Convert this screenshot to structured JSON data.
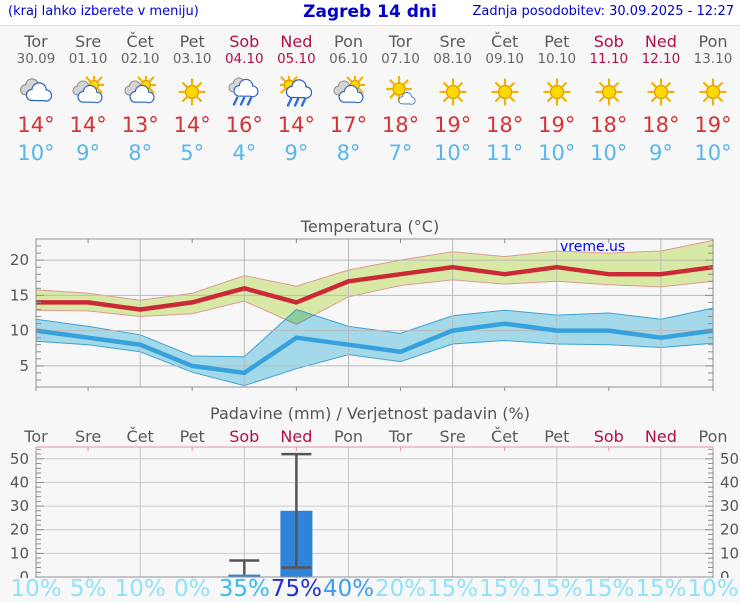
{
  "header": {
    "left_note": "(kraj lahko izberete v meniju)",
    "title": "Zagreb 14 dni",
    "updated": "Zadnja posodobitev: 30.09.2025 - 12:27"
  },
  "days": [
    {
      "name": "Tor",
      "date": "30.09",
      "weekend": false,
      "icon": "cloudy",
      "tmax": "14°",
      "tmin": "10°"
    },
    {
      "name": "Sre",
      "date": "01.10",
      "weekend": false,
      "icon": "partly",
      "tmax": "14°",
      "tmin": "9°"
    },
    {
      "name": "Čet",
      "date": "02.10",
      "weekend": false,
      "icon": "partly",
      "tmax": "13°",
      "tmin": "8°"
    },
    {
      "name": "Pet",
      "date": "03.10",
      "weekend": false,
      "icon": "sunny",
      "tmax": "14°",
      "tmin": "5°"
    },
    {
      "name": "Sob",
      "date": "04.10",
      "weekend": true,
      "icon": "rain",
      "tmax": "16°",
      "tmin": "4°"
    },
    {
      "name": "Ned",
      "date": "05.10",
      "weekend": true,
      "icon": "sun-shower",
      "tmax": "14°",
      "tmin": "9°"
    },
    {
      "name": "Pon",
      "date": "06.10",
      "weekend": false,
      "icon": "partly",
      "tmax": "17°",
      "tmin": "8°"
    },
    {
      "name": "Tor",
      "date": "07.10",
      "weekend": false,
      "icon": "mostly-sunny",
      "tmax": "18°",
      "tmin": "7°"
    },
    {
      "name": "Sre",
      "date": "08.10",
      "weekend": false,
      "icon": "sunny",
      "tmax": "19°",
      "tmin": "10°"
    },
    {
      "name": "Čet",
      "date": "09.10",
      "weekend": false,
      "icon": "sunny",
      "tmax": "18°",
      "tmin": "11°"
    },
    {
      "name": "Pet",
      "date": "10.10",
      "weekend": false,
      "icon": "sunny",
      "tmax": "19°",
      "tmin": "10°"
    },
    {
      "name": "Sob",
      "date": "11.10",
      "weekend": true,
      "icon": "sunny",
      "tmax": "18°",
      "tmin": "10°"
    },
    {
      "name": "Ned",
      "date": "12.10",
      "weekend": true,
      "icon": "sunny",
      "tmax": "18°",
      "tmin": "9°"
    },
    {
      "name": "Pon",
      "date": "13.10",
      "weekend": false,
      "icon": "sunny",
      "tmax": "19°",
      "tmin": "10°"
    }
  ],
  "chart_data": [
    {
      "type": "line",
      "title": "Temperatura (°C)",
      "watermark": "vreme.us",
      "ylim": [
        2,
        23
      ],
      "yticks": [
        5,
        10,
        15,
        20
      ],
      "x_categories": [
        "Tor",
        "Sre",
        "Čet",
        "Pet",
        "Sob",
        "Ned",
        "Pon",
        "Tor",
        "Sre",
        "Čet",
        "Pet",
        "Sob",
        "Ned",
        "Pon"
      ],
      "grid_day_indices": [
        2,
        4,
        6,
        8,
        10,
        12
      ],
      "series": [
        {
          "name": "max-temp",
          "color": "#cc2936",
          "band_fill": "#d8e9a5",
          "band_edge": "#e09a92",
          "blend": false,
          "values": [
            14,
            14,
            13,
            14,
            16,
            14,
            17,
            18,
            19,
            18,
            19,
            18,
            18,
            19
          ],
          "band_upper": [
            15.8,
            15.3,
            14.3,
            15.3,
            17.8,
            16.3,
            18.6,
            20,
            21.2,
            20.5,
            21.3,
            21,
            21.3,
            22.8
          ],
          "band_lower": [
            12.9,
            12.8,
            12,
            12.4,
            14.2,
            10.9,
            14.8,
            16.4,
            17.2,
            16.6,
            17,
            16.5,
            16.2,
            17
          ]
        },
        {
          "name": "min-temp",
          "color": "#36a1dc",
          "band_fill": "#a9e0f2",
          "band_edge": "#3da2d6",
          "blend": true,
          "values": [
            10,
            9,
            8,
            5,
            4,
            9,
            8,
            7,
            10,
            11,
            10,
            10,
            9,
            10
          ],
          "band_upper": [
            11.6,
            10.6,
            9.4,
            6.4,
            6.3,
            13,
            10.6,
            9.6,
            12.1,
            12.9,
            12.2,
            12.5,
            11.6,
            13.2
          ],
          "band_lower": [
            8.5,
            8,
            7,
            4.1,
            2.2,
            4.6,
            6.6,
            5.6,
            8.1,
            8.6,
            8.1,
            8,
            7.6,
            8.2
          ]
        }
      ]
    },
    {
      "type": "bar",
      "title": "Padavine (mm) / Verjetnost padavin (%)",
      "ylim": [
        0,
        55
      ],
      "yticks": [
        0,
        10,
        20,
        30,
        40,
        50
      ],
      "categories": [
        "Tor",
        "Sre",
        "Čet",
        "Pet",
        "Sob",
        "Ned",
        "Pon",
        "Tor",
        "Sre",
        "Čet",
        "Pet",
        "Sob",
        "Ned",
        "Pon"
      ],
      "grid_day_indices": [
        2,
        4,
        6,
        8,
        10,
        12
      ],
      "values": [
        0,
        0,
        0,
        0,
        1,
        28,
        0,
        0,
        0,
        0,
        0,
        0,
        0,
        0
      ],
      "whiskers": [
        null,
        null,
        null,
        null,
        {
          "low": 1,
          "high": 7,
          "caps": [
            "high"
          ]
        },
        {
          "low": 4,
          "high": 52,
          "caps": [
            "low",
            "high"
          ]
        },
        null,
        null,
        null,
        null,
        null,
        null,
        null,
        null
      ],
      "bar_color": "#2f84d9",
      "whisker_color": "#555555",
      "probabilities": [
        {
          "label": "10%",
          "color": "#90e2f8"
        },
        {
          "label": "5%",
          "color": "#90e2f8"
        },
        {
          "label": "10%",
          "color": "#90e2f8"
        },
        {
          "label": "0%",
          "color": "#90e2f8"
        },
        {
          "label": "35%",
          "color": "#35bdf0"
        },
        {
          "label": "75%",
          "color": "#2033cc"
        },
        {
          "label": "40%",
          "color": "#3d9ff0"
        },
        {
          "label": "20%",
          "color": "#90e2f8"
        },
        {
          "label": "15%",
          "color": "#90e2f8"
        },
        {
          "label": "15%",
          "color": "#90e2f8"
        },
        {
          "label": "15%",
          "color": "#90e2f8"
        },
        {
          "label": "15%",
          "color": "#90e2f8"
        },
        {
          "label": "15%",
          "color": "#90e2f8"
        },
        {
          "label": "10%",
          "color": "#90e2f8"
        }
      ]
    }
  ]
}
